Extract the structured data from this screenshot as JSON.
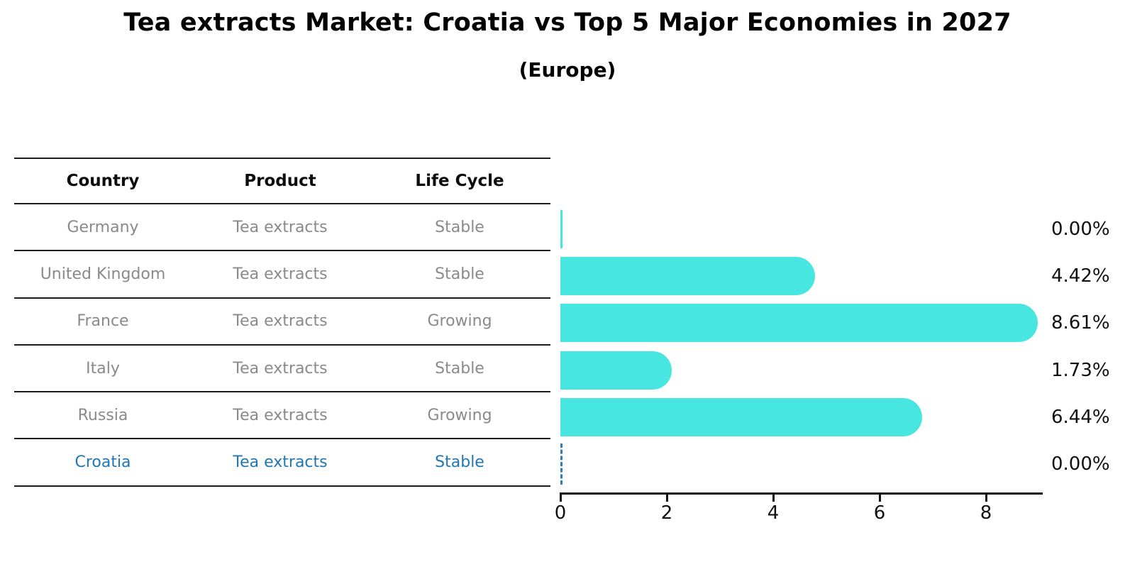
{
  "title": "Tea extracts Market: Croatia vs Top 5 Major Economies in 2027",
  "subtitle": "(Europe)",
  "colors": {
    "bar": "#47E6E0",
    "highlight_text": "#1f77b4",
    "highlight_dash": "#2e7fbe",
    "table_text": "#8a8a8a",
    "line": "#1c1c1c"
  },
  "table": {
    "headers": [
      "Country",
      "Product",
      "Life Cycle"
    ],
    "rows": [
      {
        "country": "Germany",
        "product": "Tea extracts",
        "life_cycle": "Stable",
        "highlight": false
      },
      {
        "country": "United Kingdom",
        "product": "Tea extracts",
        "life_cycle": "Stable",
        "highlight": false
      },
      {
        "country": "France",
        "product": "Tea extracts",
        "life_cycle": "Growing",
        "highlight": false
      },
      {
        "country": "Italy",
        "product": "Tea extracts",
        "life_cycle": "Stable",
        "highlight": false
      },
      {
        "country": "Russia",
        "product": "Tea extracts",
        "life_cycle": "Growing",
        "highlight": false
      },
      {
        "country": "Croatia",
        "product": "Tea extracts",
        "life_cycle": "Stable",
        "highlight": true
      }
    ]
  },
  "chart_data": {
    "type": "bar",
    "orientation": "horizontal",
    "title": "Tea extracts Market: Croatia vs Top 5 Major Economies in 2027",
    "subtitle": "(Europe)",
    "categories": [
      "Germany",
      "United Kingdom",
      "France",
      "Italy",
      "Russia",
      "Croatia"
    ],
    "values": [
      0.0,
      4.42,
      8.61,
      1.73,
      6.44,
      0.0
    ],
    "value_labels": [
      "0.00%",
      "4.42%",
      "8.61%",
      "1.73%",
      "6.44%",
      "0.00%"
    ],
    "x_ticks": [
      0,
      2,
      4,
      6,
      8
    ],
    "xlim": [
      0,
      9.07
    ],
    "grid": false,
    "legend": "none",
    "bar_color": "#47E6E0",
    "highlight_category": "Croatia",
    "highlight_marker": "dashed-line-at-zero"
  }
}
